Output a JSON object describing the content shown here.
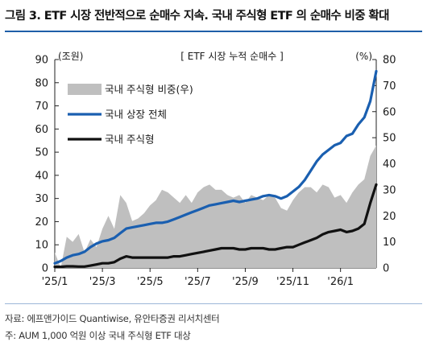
{
  "figure": {
    "title": "그림 3. ETF 시장 전반적으로 순매수 지속. 국내 주식형 ETF 의 순매수 비중 확대",
    "source": "자료: 에프앤가이드 Quantiwise, 유안타증권 리서치센터",
    "note": "주: AUM 1,000 억원 이상 국내 주식형 ETF 대상"
  },
  "chart_data": {
    "type": "area",
    "title": "[ ETF 시장 누적 순매수 ]",
    "ylabel_left": "(조원)",
    "ylabel_right": "(%)",
    "ylim_left": [
      0,
      90
    ],
    "ylim_right": [
      0,
      80
    ],
    "yticks_left": [
      "0",
      "10",
      "20",
      "30",
      "40",
      "50",
      "60",
      "70",
      "80",
      "90"
    ],
    "yticks_right": [
      "0",
      "10",
      "20",
      "30",
      "40",
      "50",
      "60",
      "70",
      "80"
    ],
    "x_ticks": [
      "'25/1",
      "'25/3",
      "'25/5",
      "'25/7",
      "'25/9",
      "'25/11",
      "'26/1"
    ],
    "x": [
      0,
      0.25,
      0.5,
      0.75,
      1,
      1.25,
      1.5,
      1.75,
      2,
      2.25,
      2.5,
      2.75,
      3,
      3.25,
      3.5,
      3.75,
      4,
      4.25,
      4.5,
      4.75,
      5,
      5.25,
      5.5,
      5.75,
      6,
      6.25,
      6.5,
      6.75,
      7,
      7.25,
      7.5,
      7.75,
      8,
      8.25,
      8.5,
      8.75,
      9,
      9.25,
      9.5,
      9.75,
      10,
      10.25,
      10.5,
      10.75,
      11,
      11.25,
      11.5,
      11.75,
      12,
      12.25,
      12.5,
      12.75,
      13,
      13.25,
      13.5
    ],
    "legend_position": "top-left",
    "grid": false,
    "series": [
      {
        "name": "국내 주식형 비중(우)",
        "type": "area",
        "axis": "right",
        "color": "#bfbfbf",
        "values": [
          6,
          0,
          12,
          10,
          13,
          6,
          11,
          8,
          15,
          20,
          15,
          28,
          25,
          18,
          19,
          21,
          24,
          26,
          30,
          29,
          27,
          25,
          28,
          25,
          29,
          31,
          32,
          30,
          30,
          28,
          27,
          28,
          25,
          28,
          27,
          26,
          28,
          27,
          23,
          22,
          26,
          29,
          31,
          31,
          29,
          32,
          31,
          27,
          28,
          25,
          29,
          32,
          34,
          43,
          47
        ]
      },
      {
        "name": "국내 상장 전체",
        "type": "line",
        "axis": "left",
        "color": "#1a5fb0",
        "values": [
          2,
          3,
          4.5,
          5.5,
          6,
          7,
          9,
          10.5,
          11.5,
          12,
          13,
          15,
          17,
          17.5,
          18,
          18.5,
          19,
          19.5,
          19.5,
          20,
          21,
          22,
          23,
          24,
          25,
          26,
          27,
          27.5,
          28,
          28.5,
          29,
          28.5,
          29,
          29.5,
          30,
          31,
          31.5,
          31,
          30,
          31,
          33,
          35,
          38,
          42,
          46,
          49,
          51,
          53,
          54,
          57,
          58,
          62,
          65,
          72,
          85
        ]
      },
      {
        "name": "국내 주식형",
        "type": "line",
        "axis": "left",
        "color": "#111111",
        "values": [
          0.5,
          0.5,
          0.7,
          0.7,
          0.6,
          0.6,
          1,
          1.5,
          2,
          2,
          2.5,
          4,
          5,
          4.5,
          4.5,
          4.5,
          4.5,
          4.5,
          4.5,
          4.5,
          5,
          5,
          5.5,
          6,
          6.5,
          7,
          7.5,
          8,
          8.5,
          8.5,
          8.5,
          8,
          8,
          8.5,
          8.5,
          8.5,
          8,
          8,
          8.5,
          9,
          9,
          10,
          11,
          12,
          13,
          14.5,
          15.5,
          16,
          16.5,
          15.5,
          16,
          17,
          19,
          28,
          36
        ]
      }
    ]
  }
}
